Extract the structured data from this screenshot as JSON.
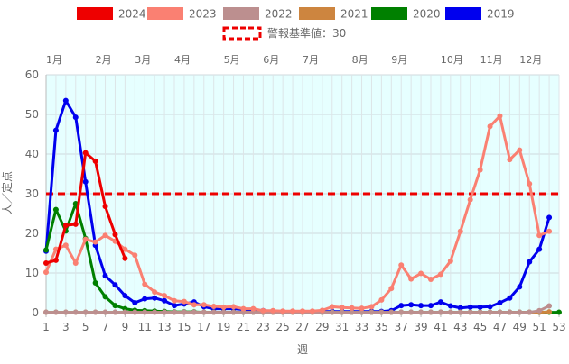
{
  "chart_data": {
    "type": "line",
    "xlabel": "週",
    "ylabel": "人／定点",
    "ylim": [
      0,
      60
    ],
    "yticks": [
      0,
      10,
      20,
      30,
      40,
      50,
      60
    ],
    "xlim": [
      1,
      53
    ],
    "xticks": [
      1,
      3,
      5,
      7,
      9,
      11,
      13,
      15,
      17,
      19,
      21,
      23,
      25,
      27,
      29,
      31,
      33,
      35,
      37,
      39,
      41,
      43,
      45,
      47,
      49,
      51,
      53
    ],
    "months": [
      {
        "label": "1月",
        "week": 1
      },
      {
        "label": "2月",
        "week": 6
      },
      {
        "label": "3月",
        "week": 10
      },
      {
        "label": "4月",
        "week": 14
      },
      {
        "label": "5月",
        "week": 19
      },
      {
        "label": "6月",
        "week": 23
      },
      {
        "label": "7月",
        "week": 27
      },
      {
        "label": "8月",
        "week": 32
      },
      {
        "label": "9月",
        "week": 36
      },
      {
        "label": "10月",
        "week": 41
      },
      {
        "label": "11月",
        "week": 45
      },
      {
        "label": "12月",
        "week": 49
      }
    ],
    "grid": true,
    "legend_position": "top",
    "threshold": {
      "name": "警報基準値：30",
      "value": 30,
      "color": "#ee0000"
    },
    "series": [
      {
        "name": "2019",
        "color": "#0000ee",
        "x": [
          1,
          2,
          3,
          4,
          5,
          6,
          7,
          8,
          9,
          10,
          11,
          12,
          13,
          14,
          15,
          16,
          17,
          18,
          19,
          20,
          21,
          22,
          23,
          24,
          25,
          26,
          27,
          28,
          29,
          30,
          31,
          32,
          33,
          34,
          35,
          36,
          37,
          38,
          39,
          40,
          41,
          42,
          43,
          44,
          45,
          46,
          47,
          48,
          49,
          50,
          51,
          52
        ],
        "values": [
          15.5,
          46,
          53.5,
          49.3,
          33,
          17,
          9.3,
          7,
          4.3,
          2.5,
          3.5,
          3.7,
          3,
          1.8,
          2.2,
          2.7,
          1.5,
          1,
          1,
          1,
          0.8,
          0.7,
          0.5,
          0.4,
          0.3,
          0.2,
          0.2,
          0.2,
          0.3,
          0.3,
          0.3,
          0.3,
          0.3,
          0.3,
          0.3,
          0.5,
          1.8,
          2,
          1.8,
          1.8,
          2.7,
          1.7,
          1.2,
          1.4,
          1.4,
          1.5,
          2.5,
          3.7,
          6.5,
          12.8,
          16,
          24
        ]
      },
      {
        "name": "2020",
        "color": "#008000",
        "x": [
          1,
          2,
          3,
          4,
          5,
          6,
          7,
          8,
          9,
          10,
          11,
          12,
          13,
          14,
          15,
          16,
          17,
          18,
          19,
          20,
          21,
          22,
          23,
          24,
          25,
          26,
          27,
          28,
          29,
          30,
          31,
          32,
          33,
          34,
          35,
          36,
          37,
          38,
          39,
          40,
          41,
          42,
          43,
          44,
          45,
          46,
          47,
          48,
          49,
          50,
          51,
          52,
          53
        ],
        "values": [
          15.8,
          26,
          20.6,
          27.5,
          18.7,
          7.5,
          4,
          1.8,
          1,
          0.6,
          0.5,
          0.4,
          0.3,
          0.2,
          0.2,
          0.2,
          0.1,
          0.1,
          0.1,
          0.1,
          0.1,
          0.1,
          0.1,
          0.1,
          0.1,
          0.1,
          0.1,
          0.1,
          0.1,
          0.1,
          0.1,
          0.1,
          0.1,
          0.1,
          0.1,
          0.1,
          0.1,
          0.1,
          0.1,
          0.1,
          0.1,
          0.1,
          0.1,
          0.1,
          0.1,
          0.1,
          0.1,
          0.1,
          0.1,
          0.1,
          0.1,
          0.1,
          0.1
        ]
      },
      {
        "name": "2021",
        "color": "#cd853f",
        "x": [
          1,
          2,
          3,
          4,
          5,
          6,
          7,
          8,
          9,
          10,
          11,
          12,
          13,
          14,
          15,
          16,
          17,
          18,
          19,
          20,
          21,
          22,
          23,
          24,
          25,
          26,
          27,
          28,
          29,
          30,
          31,
          32,
          33,
          34,
          35,
          36,
          37,
          38,
          39,
          40,
          41,
          42,
          43,
          44,
          45,
          46,
          47,
          48,
          49,
          50,
          51,
          52
        ],
        "values": [
          0.1,
          0.1,
          0.1,
          0.1,
          0.1,
          0.1,
          0.1,
          0.1,
          0.1,
          0.1,
          0.1,
          0.1,
          0.1,
          0.1,
          0.1,
          0.1,
          0.1,
          0.1,
          0.1,
          0.1,
          0.1,
          0.1,
          0.1,
          0.1,
          0.1,
          0.1,
          0.1,
          0.1,
          0.1,
          0.1,
          0.1,
          0.1,
          0.1,
          0.1,
          0.1,
          0.1,
          0.1,
          0.1,
          0.1,
          0.1,
          0.1,
          0.1,
          0.1,
          0.1,
          0.1,
          0.1,
          0.1,
          0.1,
          0.1,
          0.1,
          0.1,
          0.2
        ]
      },
      {
        "name": "2022",
        "color": "#bc8f8f",
        "x": [
          1,
          2,
          3,
          4,
          5,
          6,
          7,
          8,
          9,
          10,
          11,
          12,
          13,
          14,
          15,
          16,
          17,
          18,
          19,
          20,
          21,
          22,
          23,
          24,
          25,
          26,
          27,
          28,
          29,
          30,
          31,
          32,
          33,
          34,
          35,
          36,
          37,
          38,
          39,
          40,
          41,
          42,
          43,
          44,
          45,
          46,
          47,
          48,
          49,
          50,
          51,
          52
        ],
        "values": [
          0.1,
          0.1,
          0.1,
          0.1,
          0.1,
          0.1,
          0.1,
          0.1,
          0.1,
          0.1,
          0.1,
          0.1,
          0.1,
          0.1,
          0.1,
          0.1,
          0.1,
          0.1,
          0.1,
          0.1,
          0.1,
          0.1,
          0.1,
          0.1,
          0.1,
          0.1,
          0.1,
          0.1,
          0.1,
          0.1,
          0.1,
          0.1,
          0.1,
          0.1,
          0.1,
          0.1,
          0.1,
          0.1,
          0.1,
          0.1,
          0.1,
          0.1,
          0.1,
          0.1,
          0.1,
          0.1,
          0.1,
          0.1,
          0.1,
          0.1,
          0.5,
          1.7
        ]
      },
      {
        "name": "2023",
        "color": "#fa8072",
        "x": [
          1,
          2,
          3,
          4,
          5,
          6,
          7,
          8,
          9,
          10,
          11,
          12,
          13,
          14,
          15,
          16,
          17,
          18,
          19,
          20,
          21,
          22,
          23,
          24,
          25,
          26,
          27,
          28,
          29,
          30,
          31,
          32,
          33,
          34,
          35,
          36,
          37,
          38,
          39,
          40,
          41,
          42,
          43,
          44,
          45,
          46,
          47,
          48,
          49,
          50,
          51,
          52
        ],
        "values": [
          10.2,
          16,
          17,
          12.5,
          18.5,
          17.8,
          19.5,
          18,
          16,
          14.5,
          7.2,
          5.2,
          4.3,
          3,
          2.8,
          2,
          2,
          1.6,
          1.4,
          1.5,
          1,
          1,
          0.5,
          0.5,
          0.4,
          0.4,
          0.4,
          0.4,
          0.6,
          1.5,
          1.3,
          1.2,
          1.1,
          1.5,
          3.2,
          6.1,
          12,
          8.5,
          9.9,
          8.4,
          9.7,
          13,
          20.5,
          28.5,
          36,
          47,
          49.6,
          38.6,
          41,
          32.5,
          19.5,
          20.5
        ]
      },
      {
        "name": "2024",
        "color": "#ee0000",
        "x": [
          1,
          2,
          3,
          4,
          5,
          6,
          7,
          8,
          9
        ],
        "values": [
          12.5,
          13.2,
          22,
          22.3,
          40.3,
          38.2,
          26.8,
          19.7,
          13.7
        ]
      }
    ]
  }
}
